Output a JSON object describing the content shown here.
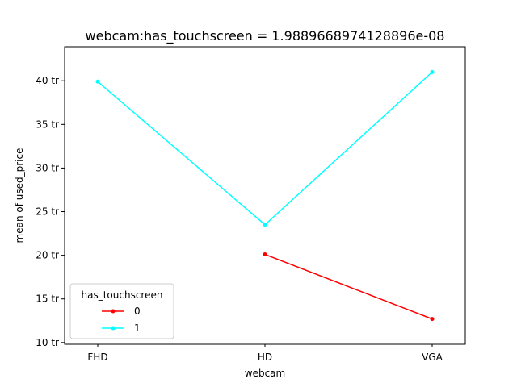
{
  "chart_data": {
    "type": "line",
    "title": "webcam:has_touchscreen = 1.9889668974128896e-08",
    "xlabel": "webcam",
    "ylabel": "mean of used_price",
    "categories": [
      "FHD",
      "HD",
      "VGA"
    ],
    "ylim": [
      9.8,
      43.9
    ],
    "yticks": [
      {
        "value": 10,
        "label": "10 tr"
      },
      {
        "value": 15,
        "label": "15 tr"
      },
      {
        "value": 20,
        "label": "20 tr"
      },
      {
        "value": 25,
        "label": "25 tr"
      },
      {
        "value": 30,
        "label": "30 tr"
      },
      {
        "value": 35,
        "label": "35 tr"
      },
      {
        "value": 40,
        "label": "40 tr"
      }
    ],
    "legend": {
      "title": "has_touchscreen",
      "placement": "lower-left"
    },
    "grid": false,
    "series": [
      {
        "name": "0",
        "color": "#ff0000",
        "values": [
          null,
          20.1,
          12.7
        ]
      },
      {
        "name": "1",
        "color": "#00ffff",
        "values": [
          39.9,
          23.5,
          41.0
        ]
      }
    ]
  }
}
